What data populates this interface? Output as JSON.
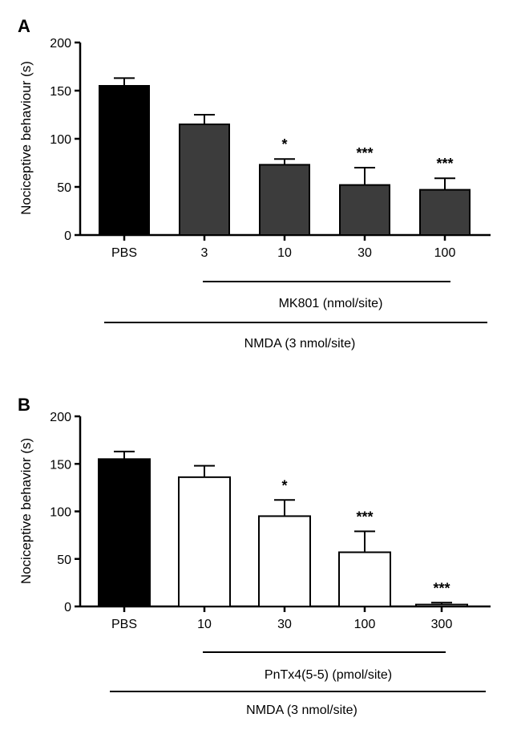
{
  "colors": {
    "pbs": "#000000",
    "drugA": "#3c3c3c",
    "drugB": "#ffffff",
    "axis": "#000000"
  },
  "chart_data": [
    {
      "panel": "A",
      "type": "bar",
      "ylabel": "Nociceptive behaviour  (s)",
      "xlabel": "",
      "ylim": [
        0,
        200
      ],
      "yticks": [
        "0",
        "50",
        "100",
        "150",
        "200"
      ],
      "categories": [
        "PBS",
        "3",
        "10",
        "30",
        "100"
      ],
      "values": [
        155,
        115,
        73,
        52,
        47
      ],
      "errors": [
        8,
        10,
        6,
        18,
        12
      ],
      "significance": [
        "",
        "",
        "*",
        "***",
        "***"
      ],
      "fills": [
        "pbs",
        "drugA",
        "drugA",
        "drugA",
        "drugA"
      ],
      "group_labels": [
        {
          "text": "MK801 (nmol/site)",
          "span": [
            1,
            4
          ]
        },
        {
          "text": "NMDA (3 nmol/site)",
          "span": [
            0,
            4
          ]
        }
      ]
    },
    {
      "panel": "B",
      "type": "bar",
      "ylabel": "Nociceptive behavior (s)",
      "xlabel": "",
      "ylim": [
        0,
        200
      ],
      "yticks": [
        "0",
        "50",
        "100",
        "150",
        "200"
      ],
      "categories": [
        "PBS",
        "10",
        "30",
        "100",
        "300"
      ],
      "values": [
        155,
        136,
        95,
        57,
        2
      ],
      "errors": [
        8,
        12,
        17,
        22,
        2
      ],
      "significance": [
        "",
        "",
        "*",
        "***",
        "***"
      ],
      "fills": [
        "pbs",
        "drugB",
        "drugB",
        "drugB",
        "drugB"
      ],
      "group_labels": [
        {
          "text": "PnTx4(5-5) (pmol/site)",
          "span": [
            1,
            4
          ]
        },
        {
          "text": "NMDA (3 nmol/site)",
          "span": [
            0,
            4
          ]
        }
      ]
    }
  ]
}
